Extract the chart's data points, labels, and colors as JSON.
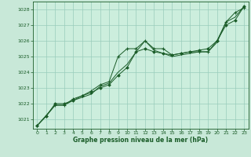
{
  "title": "Graphe pression niveau de la mer (hPa)",
  "bg_color": "#c8e8d8",
  "plot_bg_color": "#cceedd",
  "grid_color": "#99ccbb",
  "line_color": "#1a5c28",
  "text_color": "#1a5c28",
  "xlim": [
    -0.5,
    23.5
  ],
  "ylim": [
    1020.4,
    1028.5
  ],
  "yticks": [
    1021,
    1022,
    1023,
    1024,
    1025,
    1026,
    1027,
    1028
  ],
  "xticks": [
    0,
    1,
    2,
    3,
    4,
    5,
    6,
    7,
    8,
    9,
    10,
    11,
    12,
    13,
    14,
    15,
    16,
    17,
    18,
    19,
    20,
    21,
    22,
    23
  ],
  "s1_x": [
    0,
    1,
    2,
    3,
    4,
    5,
    6,
    7,
    8,
    9,
    10,
    11,
    12,
    13,
    14,
    15,
    16,
    17,
    18,
    19,
    20,
    21,
    22,
    23
  ],
  "s1_y": [
    1020.6,
    1021.2,
    1021.9,
    1021.9,
    1022.3,
    1022.5,
    1022.8,
    1023.2,
    1023.4,
    1025.0,
    1025.5,
    1025.5,
    1026.0,
    1025.5,
    1025.5,
    1025.1,
    1025.2,
    1025.3,
    1025.3,
    1025.3,
    1026.0,
    1027.2,
    1027.8,
    1028.1
  ],
  "s2_x": [
    0,
    1,
    2,
    3,
    4,
    5,
    6,
    7,
    8,
    9,
    10,
    11,
    12,
    13,
    14,
    15,
    16,
    17,
    18,
    19,
    20,
    21,
    22,
    23
  ],
  "s2_y": [
    1020.6,
    1021.2,
    1022.0,
    1022.0,
    1022.2,
    1022.5,
    1022.7,
    1023.0,
    1023.2,
    1023.8,
    1024.3,
    1025.3,
    1025.5,
    1025.3,
    1025.2,
    1025.1,
    1025.2,
    1025.3,
    1025.4,
    1025.5,
    1026.0,
    1027.0,
    1027.3,
    1028.2
  ],
  "s3_x": [
    0,
    2,
    3,
    4,
    5,
    6,
    7,
    8,
    9,
    10,
    11,
    12,
    13,
    14,
    15,
    16,
    17,
    18,
    19,
    20,
    21,
    22,
    23
  ],
  "s3_y": [
    1020.6,
    1021.9,
    1021.9,
    1022.2,
    1022.4,
    1022.6,
    1023.1,
    1023.3,
    1024.0,
    1024.5,
    1025.3,
    1026.0,
    1025.4,
    1025.2,
    1025.0,
    1025.1,
    1025.2,
    1025.3,
    1025.3,
    1025.9,
    1027.2,
    1027.5,
    1028.2
  ]
}
